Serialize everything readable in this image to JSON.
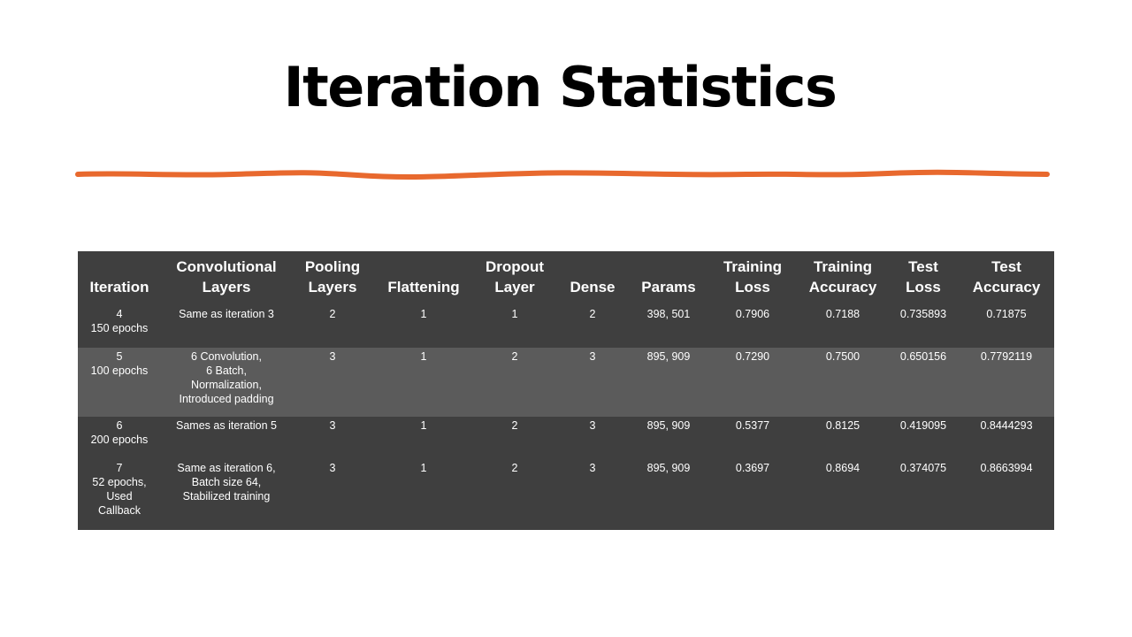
{
  "slide": {
    "title": "Iteration Statistics",
    "accent_color": "#e8692e"
  },
  "table": {
    "headers": [
      [
        "Iteration"
      ],
      [
        "Convolutional",
        "Layers"
      ],
      [
        "Pooling",
        "Layers"
      ],
      [
        "Flattening"
      ],
      [
        "Dropout",
        "Layer"
      ],
      [
        "Dense"
      ],
      [
        "Params"
      ],
      [
        "Training",
        "Loss"
      ],
      [
        "Training",
        "Accuracy"
      ],
      [
        "Test",
        "Loss"
      ],
      [
        "Test",
        "Accuracy"
      ]
    ],
    "rows": [
      {
        "iteration": [
          "4",
          "150 epochs"
        ],
        "conv_layers": [
          "Same as iteration 3"
        ],
        "pooling": "2",
        "flattening": "1",
        "dropout": "1",
        "dense": "2",
        "params": "398, 501",
        "training_loss": "0.7906",
        "training_accuracy": "0.7188",
        "test_loss": "0.735893",
        "test_accuracy": "0.71875"
      },
      {
        "iteration": [
          "5",
          "100 epochs"
        ],
        "conv_layers": [
          "6 Convolution,",
          "6 Batch,",
          "Normalization,",
          "Introduced  padding"
        ],
        "pooling": "3",
        "flattening": "1",
        "dropout": "2",
        "dense": "3",
        "params": "895, 909",
        "training_loss": "0.7290",
        "training_accuracy": "0.7500",
        "test_loss": "0.650156",
        "test_accuracy": "0.7792119"
      },
      {
        "iteration": [
          "6",
          "200 epochs"
        ],
        "conv_layers": [
          "Sames as iteration  5"
        ],
        "pooling": "3",
        "flattening": "1",
        "dropout": "2",
        "dense": "3",
        "params": "895, 909",
        "training_loss": "0.5377",
        "training_accuracy": "0.8125",
        "test_loss": "0.419095",
        "test_accuracy": "0.8444293"
      },
      {
        "iteration": [
          "7",
          "52 epochs,",
          "Used",
          "Callback"
        ],
        "conv_layers": [
          "Same as iteration 6,",
          "Batch size 64,",
          "Stabilized  training"
        ],
        "pooling": "3",
        "flattening": "1",
        "dropout": "2",
        "dense": "3",
        "params": "895, 909",
        "training_loss": "0.3697",
        "training_accuracy": "0.8694",
        "test_loss": "0.374075",
        "test_accuracy": "0.8663994"
      }
    ]
  }
}
